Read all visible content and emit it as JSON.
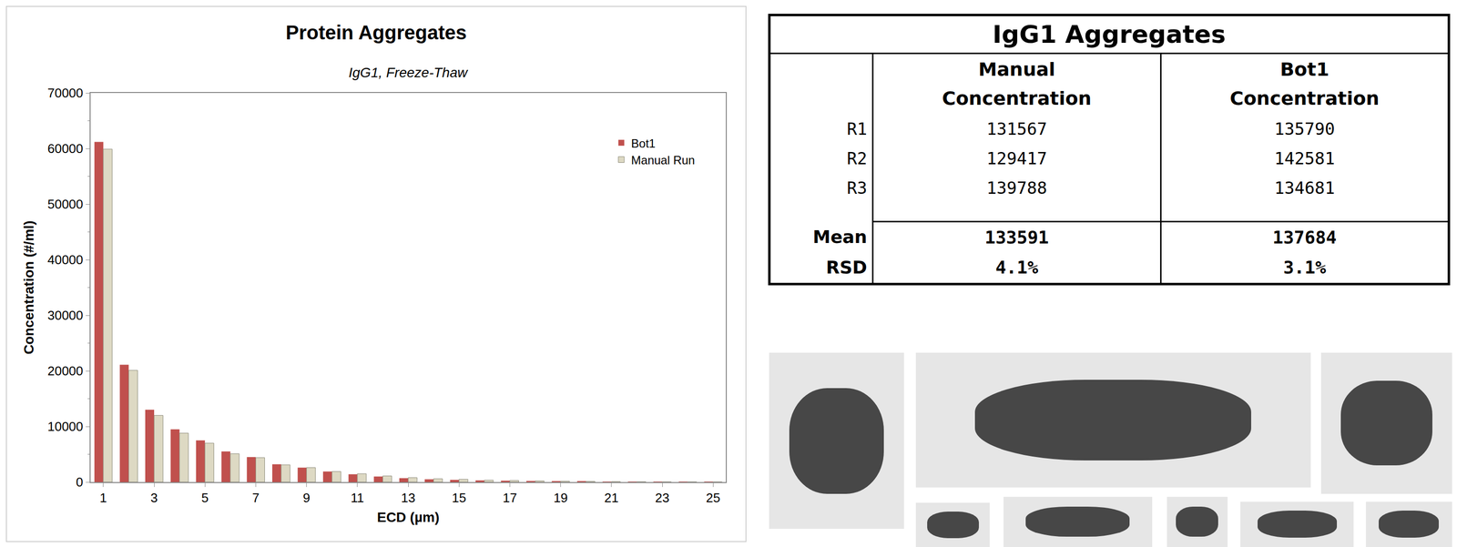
{
  "chart_data": {
    "type": "bar",
    "title": "Protein Aggregates",
    "subtitle": "IgG1, Freeze-Thaw",
    "x_label": "ECD (µm)",
    "y_label": "Concentration (#/ml)",
    "x": [
      1,
      2,
      3,
      4,
      5,
      6,
      7,
      8,
      9,
      10,
      11,
      12,
      13,
      14,
      15,
      16,
      17,
      18,
      19,
      20,
      21,
      22,
      23,
      24,
      25
    ],
    "series": [
      {
        "name": "Bot1",
        "color": "#c0504d",
        "values": [
          61200,
          21100,
          13000,
          9500,
          7500,
          5500,
          4500,
          3200,
          2600,
          1900,
          1400,
          1000,
          700,
          500,
          400,
          300,
          250,
          200,
          150,
          100,
          80,
          60,
          50,
          40,
          30
        ]
      },
      {
        "name": "Manual Run",
        "color": "#ddd9c3",
        "values": [
          59900,
          20100,
          12000,
          8800,
          7000,
          5100,
          4400,
          3100,
          2600,
          1900,
          1500,
          1100,
          800,
          600,
          500,
          350,
          280,
          220,
          170,
          120,
          90,
          70,
          50,
          40,
          30
        ]
      }
    ],
    "xlim": [
      0.5,
      25.5
    ],
    "xticks": [
      1,
      3,
      5,
      7,
      9,
      11,
      13,
      15,
      17,
      19,
      21,
      23,
      25
    ],
    "ylim": [
      0,
      70000
    ],
    "yticks": [
      0,
      10000,
      20000,
      30000,
      40000,
      50000,
      60000,
      70000
    ],
    "grid": false,
    "legend": "top-right"
  },
  "table": {
    "title": "IgG1 Aggregates",
    "columns": [
      "Manual Concentration",
      "Bot1 Concentration"
    ],
    "rows": [
      {
        "label": "R1",
        "values": [
          "131567",
          "135790"
        ]
      },
      {
        "label": "R2",
        "values": [
          "129417",
          "142581"
        ]
      },
      {
        "label": "R3",
        "values": [
          "139788",
          "134681"
        ]
      }
    ],
    "summary": [
      {
        "label": "Mean",
        "values": [
          "133591",
          "137684"
        ]
      },
      {
        "label": "RSD",
        "values": [
          "4.1%",
          "3.1%"
        ]
      }
    ]
  }
}
